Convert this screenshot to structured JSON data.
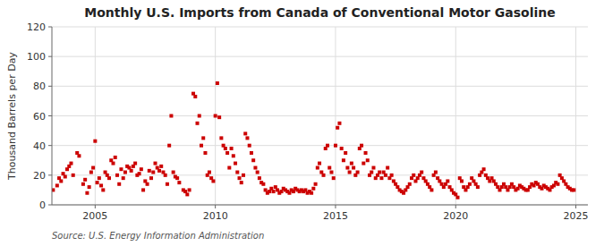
{
  "chart_data": {
    "type": "scatter",
    "title": "Monthly U.S. Imports from Canada of Conventional Motor Gasoline",
    "y_label": "Thousand Barrels per Day",
    "annotations": [
      "Source: U.S. Energy Information Administration"
    ],
    "xlim": [
      2003.2,
      2025.5
    ],
    "xticks": [
      2005,
      2010,
      2015,
      2020,
      2025
    ],
    "ylim": [
      0,
      120
    ],
    "yticks": [
      0,
      20,
      40,
      60,
      80,
      100,
      120
    ],
    "grid": true,
    "color": "#cc0000",
    "marker": "square",
    "x": [
      2003.25,
      2003.417,
      2003.5,
      2003.583,
      2003.667,
      2003.75,
      2003.833,
      2003.917,
      2004.0,
      2004.083,
      2004.25,
      2004.333,
      2004.5,
      2004.583,
      2004.667,
      2004.75,
      2004.833,
      2004.917,
      2005.0,
      2005.083,
      2005.167,
      2005.25,
      2005.333,
      2005.417,
      2005.5,
      2005.583,
      2005.667,
      2005.75,
      2005.833,
      2005.917,
      2006.0,
      2006.083,
      2006.167,
      2006.25,
      2006.333,
      2006.417,
      2006.5,
      2006.583,
      2006.667,
      2006.75,
      2006.833,
      2006.917,
      2007.0,
      2007.083,
      2007.167,
      2007.25,
      2007.333,
      2007.417,
      2007.5,
      2007.583,
      2007.667,
      2007.75,
      2007.833,
      2007.917,
      2008.0,
      2008.083,
      2008.167,
      2008.25,
      2008.333,
      2008.417,
      2008.5,
      2008.667,
      2008.75,
      2008.833,
      2008.917,
      2009.083,
      2009.167,
      2009.25,
      2009.333,
      2009.417,
      2009.5,
      2009.583,
      2009.667,
      2009.75,
      2009.833,
      2009.917,
      2010.0,
      2010.083,
      2010.167,
      2010.25,
      2010.333,
      2010.417,
      2010.5,
      2010.583,
      2010.667,
      2010.75,
      2010.833,
      2010.917,
      2011.0,
      2011.083,
      2011.167,
      2011.25,
      2011.333,
      2011.417,
      2011.5,
      2011.583,
      2011.667,
      2011.75,
      2011.833,
      2011.917,
      2012.0,
      2012.083,
      2012.167,
      2012.25,
      2012.333,
      2012.417,
      2012.5,
      2012.583,
      2012.667,
      2012.75,
      2012.833,
      2012.917,
      2013.0,
      2013.083,
      2013.167,
      2013.25,
      2013.333,
      2013.417,
      2013.5,
      2013.583,
      2013.667,
      2013.75,
      2013.833,
      2013.917,
      2014.0,
      2014.083,
      2014.167,
      2014.25,
      2014.333,
      2014.417,
      2014.5,
      2014.583,
      2014.667,
      2014.75,
      2014.833,
      2014.917,
      2015.0,
      2015.083,
      2015.167,
      2015.25,
      2015.333,
      2015.417,
      2015.5,
      2015.583,
      2015.667,
      2015.75,
      2015.833,
      2015.917,
      2016.0,
      2016.083,
      2016.167,
      2016.25,
      2016.333,
      2016.417,
      2016.5,
      2016.583,
      2016.667,
      2016.75,
      2016.833,
      2016.917,
      2017.0,
      2017.083,
      2017.167,
      2017.25,
      2017.333,
      2017.417,
      2017.5,
      2017.583,
      2017.667,
      2017.75,
      2017.833,
      2017.917,
      2018.0,
      2018.083,
      2018.167,
      2018.25,
      2018.333,
      2018.417,
      2018.5,
      2018.583,
      2018.667,
      2018.75,
      2018.833,
      2018.917,
      2019.0,
      2019.083,
      2019.167,
      2019.25,
      2019.333,
      2019.417,
      2019.5,
      2019.583,
      2019.667,
      2019.75,
      2019.833,
      2019.917,
      2020.0,
      2020.083,
      2020.167,
      2020.25,
      2020.333,
      2020.417,
      2020.5,
      2020.583,
      2020.667,
      2020.75,
      2020.833,
      2020.917,
      2021.0,
      2021.083,
      2021.167,
      2021.25,
      2021.333,
      2021.417,
      2021.5,
      2021.583,
      2021.667,
      2021.75,
      2021.833,
      2021.917,
      2022.0,
      2022.083,
      2022.167,
      2022.25,
      2022.333,
      2022.417,
      2022.5,
      2022.583,
      2022.667,
      2022.75,
      2022.833,
      2022.917,
      2023.0,
      2023.083,
      2023.167,
      2023.25,
      2023.333,
      2023.417,
      2023.5,
      2023.583,
      2023.667,
      2023.75,
      2023.833,
      2023.917,
      2024.0,
      2024.083,
      2024.167,
      2024.25,
      2024.333,
      2024.417,
      2024.5,
      2024.583,
      2024.667,
      2024.75,
      2024.833,
      2024.917
    ],
    "values": [
      10,
      13,
      18,
      16,
      21,
      19,
      24,
      26,
      28,
      20,
      35,
      33,
      14,
      17,
      8,
      12,
      22,
      25,
      43,
      15,
      18,
      13,
      10,
      22,
      20,
      18,
      30,
      28,
      32,
      20,
      14,
      24,
      18,
      22,
      26,
      25,
      23,
      26,
      28,
      20,
      21,
      24,
      10,
      16,
      14,
      23,
      18,
      22,
      28,
      25,
      23,
      26,
      22,
      20,
      14,
      40,
      60,
      22,
      19,
      18,
      15,
      10,
      9,
      7,
      10,
      75,
      73,
      55,
      60,
      40,
      45,
      35,
      20,
      22,
      18,
      16,
      60,
      82,
      59,
      45,
      40,
      38,
      35,
      25,
      38,
      33,
      28,
      22,
      18,
      15,
      20,
      48,
      45,
      40,
      35,
      30,
      25,
      22,
      18,
      15,
      14,
      10,
      8,
      9,
      11,
      9,
      12,
      10,
      8,
      9,
      11,
      10,
      9,
      8,
      10,
      9,
      11,
      10,
      9,
      10,
      9,
      10,
      8,
      9,
      8,
      11,
      14,
      25,
      28,
      22,
      20,
      38,
      40,
      25,
      22,
      18,
      40,
      52,
      55,
      38,
      30,
      35,
      25,
      22,
      28,
      25,
      20,
      22,
      38,
      40,
      28,
      35,
      30,
      20,
      22,
      25,
      18,
      20,
      22,
      18,
      22,
      20,
      25,
      18,
      20,
      16,
      14,
      12,
      10,
      9,
      8,
      10,
      12,
      14,
      18,
      20,
      16,
      18,
      20,
      22,
      18,
      16,
      14,
      12,
      10,
      20,
      22,
      18,
      16,
      14,
      12,
      14,
      16,
      12,
      10,
      8,
      7,
      5,
      18,
      16,
      12,
      10,
      12,
      14,
      18,
      16,
      14,
      12,
      20,
      22,
      24,
      20,
      18,
      16,
      18,
      16,
      14,
      12,
      10,
      12,
      14,
      12,
      10,
      12,
      14,
      12,
      10,
      11,
      13,
      12,
      11,
      10,
      10,
      12,
      14,
      13,
      15,
      14,
      12,
      11,
      13,
      12,
      11,
      10,
      12,
      13,
      15,
      14,
      20,
      18,
      16,
      14,
      12,
      11,
      10,
      10
    ]
  }
}
